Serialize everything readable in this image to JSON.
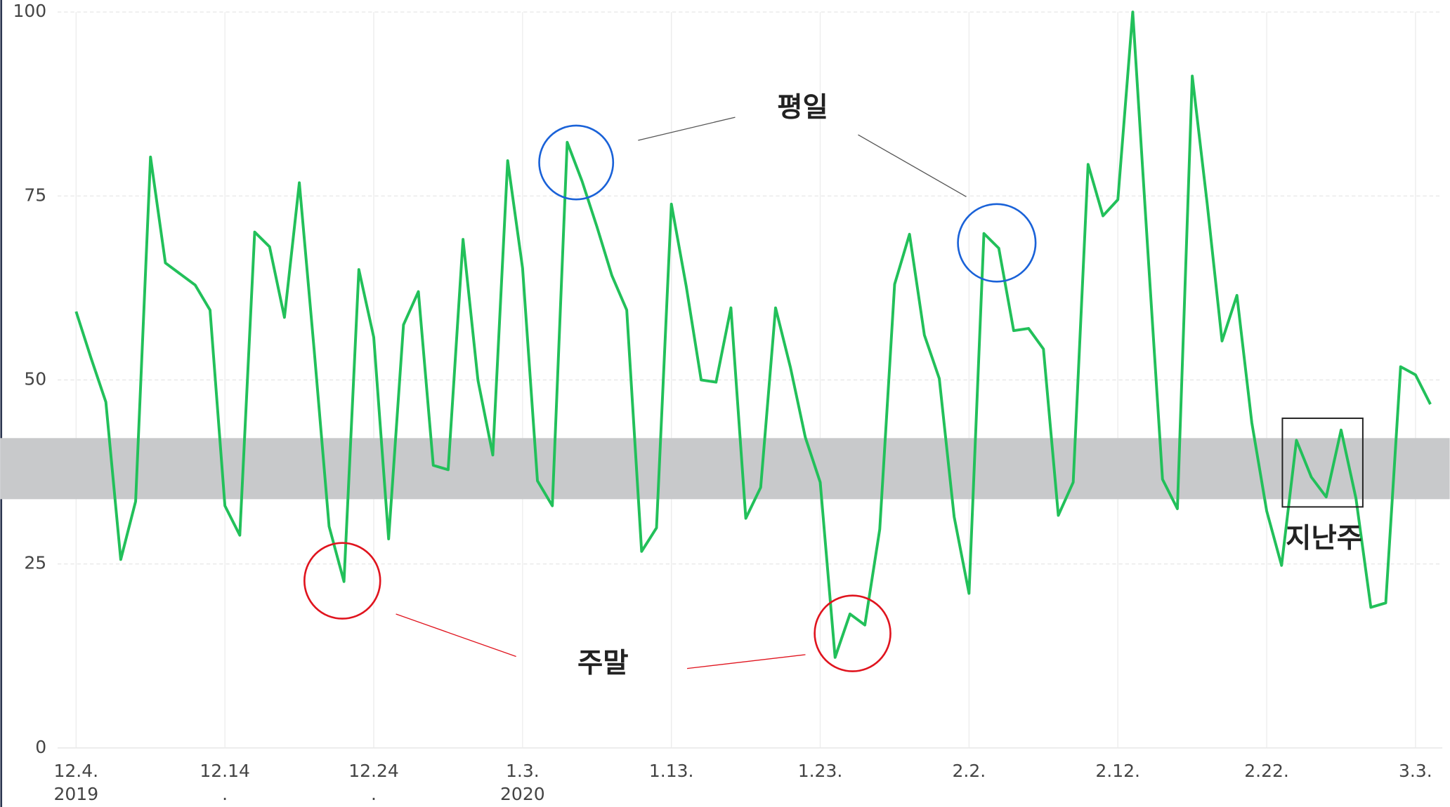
{
  "chart_data": {
    "type": "line",
    "categories": [
      "12.4.",
      null,
      null,
      null,
      null,
      null,
      null,
      null,
      null,
      null,
      "12.14",
      null,
      null,
      null,
      null,
      null,
      null,
      null,
      null,
      null,
      "12.24",
      null,
      null,
      null,
      null,
      null,
      null,
      null,
      null,
      null,
      "1.3.",
      null,
      null,
      null,
      null,
      null,
      null,
      null,
      null,
      null,
      "1.13.",
      null,
      null,
      null,
      null,
      null,
      null,
      null,
      null,
      null,
      "1.23.",
      null,
      null,
      null,
      null,
      null,
      null,
      null,
      null,
      null,
      "2.2.",
      null,
      null,
      null,
      null,
      null,
      null,
      null,
      null,
      null,
      "2.12.",
      null,
      null,
      null,
      null,
      null,
      null,
      null,
      null,
      null,
      "2.22.",
      null,
      null,
      null,
      null,
      null,
      null,
      null,
      null,
      null,
      "3.3.",
      null
    ],
    "sublabels": [
      "2019",
      ".",
      ".",
      "2020"
    ],
    "values": [
      59.3,
      53,
      47,
      25.6,
      33.5,
      80.3,
      65.9,
      64.4,
      62.9,
      59.5,
      32.9,
      28.9,
      70.1,
      68.1,
      58.5,
      76.8,
      54,
      30.1,
      22.6,
      65,
      55.8,
      28.4,
      57.5,
      62,
      38.4,
      37.8,
      69.1,
      50,
      39.8,
      79.8,
      65.2,
      36.3,
      32.9,
      82.3,
      77,
      70.8,
      64.2,
      59.5,
      26.7,
      29.9,
      73.9,
      62.7,
      50,
      49.7,
      59.8,
      31.2,
      35.4,
      59.8,
      51.7,
      42.2,
      36.1,
      12.3,
      18.2,
      16.7,
      29.7,
      63,
      69.8,
      56.1,
      50.2,
      31.4,
      21,
      69.9,
      67.9,
      56.7,
      57,
      54.2,
      31.6,
      36.1,
      79.3,
      72.3,
      74.5,
      100,
      68,
      36.5,
      32.5,
      91.3,
      74,
      55.3,
      61.5,
      44.2,
      32.2,
      24.8,
      41.8,
      36.8,
      34.1,
      43.2,
      33.9,
      19.1,
      19.7,
      51.8,
      50.7,
      46.7
    ],
    "color": "#22c05a",
    "ylim": [
      0,
      100
    ],
    "yticks": [
      0,
      25,
      50,
      75,
      100
    ],
    "grid": true,
    "band": {
      "from": 33.8,
      "to": 42.1,
      "color": "#c8c9cb"
    },
    "annotations": [
      "평일",
      "주말",
      "지난주"
    ]
  }
}
